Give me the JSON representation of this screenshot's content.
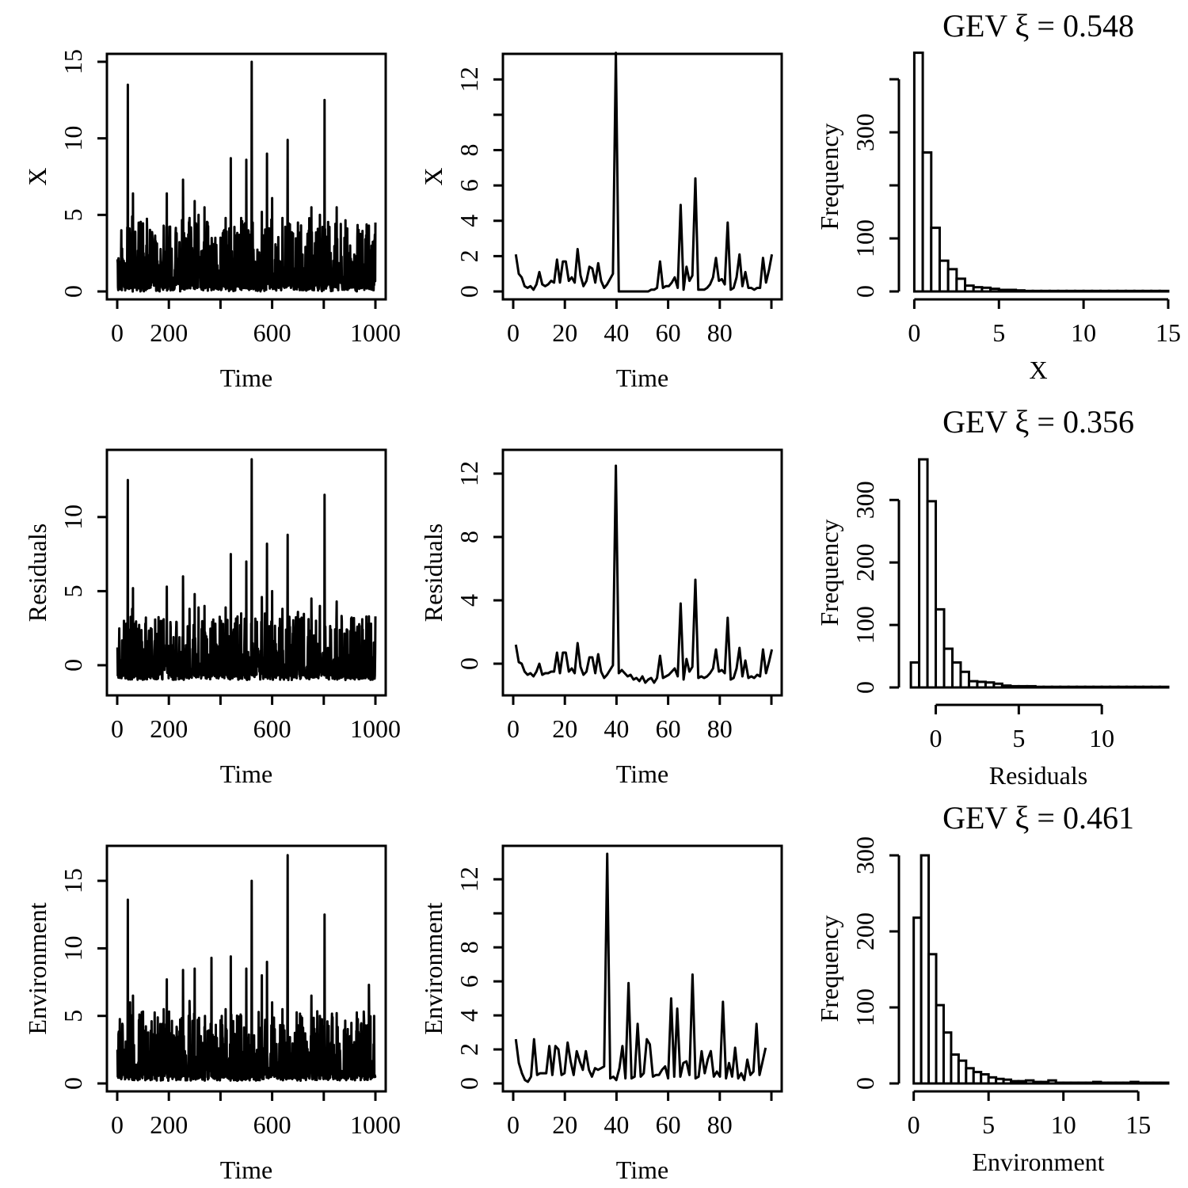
{
  "chart_data": [
    {
      "id": "p11",
      "type": "line",
      "xlabel": "Time",
      "ylabel": "X",
      "title": "",
      "xlim": [
        0,
        1000
      ],
      "ylim": [
        0,
        15
      ],
      "xticks": [
        0,
        200,
        600,
        1000
      ],
      "xminor": [
        400,
        800
      ],
      "yticks": [
        0,
        5,
        10,
        15
      ],
      "ytick_labels": [
        "0",
        "5",
        "10",
        "15"
      ],
      "base": 0,
      "spread": 3.4,
      "n": 1000,
      "seed": 11,
      "spikes": [
        [
          1,
          2.1
        ],
        [
          25,
          2.0
        ],
        [
          35,
          1.5
        ],
        [
          41,
          13.5
        ],
        [
          58,
          4.9
        ],
        [
          61,
          6.4
        ],
        [
          70,
          3.9
        ],
        [
          95,
          2.7
        ],
        [
          130,
          2.9
        ],
        [
          180,
          4.3
        ],
        [
          192,
          6.4
        ],
        [
          230,
          3.8
        ],
        [
          255,
          7.3
        ],
        [
          280,
          4.8
        ],
        [
          300,
          5.9
        ],
        [
          315,
          5.0
        ],
        [
          338,
          5.5
        ],
        [
          350,
          4.5
        ],
        [
          380,
          3.5
        ],
        [
          420,
          4.8
        ],
        [
          440,
          8.7
        ],
        [
          480,
          4.8
        ],
        [
          500,
          8.6
        ],
        [
          521,
          15.0
        ],
        [
          560,
          5.2
        ],
        [
          580,
          9.0
        ],
        [
          600,
          6.1
        ],
        [
          640,
          4.8
        ],
        [
          660,
          9.9
        ],
        [
          680,
          3.2
        ],
        [
          700,
          4.5
        ],
        [
          752,
          5.5
        ],
        [
          785,
          5.0
        ],
        [
          803,
          12.5
        ],
        [
          850,
          5.5
        ],
        [
          880,
          3.5
        ],
        [
          902,
          3.0
        ],
        [
          930,
          3.5
        ],
        [
          975,
          4.3
        ],
        [
          1000,
          4.5
        ]
      ]
    },
    {
      "id": "p12",
      "type": "line",
      "xlabel": "Time",
      "ylabel": "X",
      "title": "",
      "xlim": [
        0,
        100
      ],
      "ylim": [
        0,
        13
      ],
      "xticks": [
        0,
        20,
        40,
        60,
        80
      ],
      "xminor": [
        100
      ],
      "yticks": [
        0,
        2,
        4,
        6,
        8,
        12
      ],
      "ytick_labels": [
        "0",
        "2",
        "4",
        "6",
        "8",
        "12"
      ],
      "yminor": [
        10
      ],
      "values": [
        2.1,
        1.0,
        0.8,
        0.3,
        0.2,
        0.3,
        0.1,
        0.4,
        1.1,
        0.4,
        0.3,
        0.4,
        0.6,
        0.5,
        1.8,
        0.5,
        1.7,
        1.7,
        0.6,
        0.8,
        0.5,
        2.4,
        0.9,
        0.3,
        0.6,
        1.4,
        1.3,
        0.5,
        1.6,
        0.6,
        0.2,
        0.4,
        0.7,
        1.0,
        13.5,
        0.0,
        0.0,
        0.0,
        0.0,
        0.0,
        0.0,
        0.0,
        0.0,
        0.0,
        0.0,
        0.0,
        0.1,
        0.1,
        0.2,
        1.7,
        0.2,
        0.3,
        0.3,
        0.5,
        0.8,
        0.2,
        4.9,
        0.1,
        1.4,
        0.6,
        0.9,
        6.4,
        0.1,
        0.1,
        0.1,
        0.2,
        0.4,
        0.8,
        1.9,
        0.6,
        0.7,
        0.4,
        3.9,
        0.1,
        0.2,
        0.8,
        2.1,
        0.3,
        1.1,
        0.2,
        0.2,
        0.1,
        0.2,
        0.2,
        1.9,
        0.5,
        1.2,
        2.1
      ],
      "x_step": 1.14
    },
    {
      "id": "p13",
      "type": "bar",
      "hist": true,
      "title": "GEV ξ = 0.548",
      "xlabel": "X",
      "ylabel": "Frequency",
      "xlim": [
        -0.3,
        15
      ],
      "ylim": [
        0,
        430
      ],
      "xticks": [
        0,
        5,
        10,
        15
      ],
      "yticks": [
        0,
        100,
        300
      ],
      "yminor": [
        200,
        400
      ],
      "bin_start": 0,
      "bin_width": 0.5,
      "values": [
        450,
        262,
        120,
        58,
        42,
        24,
        11,
        8,
        7,
        5,
        3,
        3,
        2,
        1,
        1,
        1,
        1,
        1,
        1,
        1,
        1,
        1,
        1,
        1,
        1,
        1,
        1,
        1,
        1,
        1
      ]
    },
    {
      "id": "p21",
      "type": "line",
      "xlabel": "Time",
      "ylabel": "Residuals",
      "title": "",
      "xlim": [
        0,
        1000
      ],
      "ylim": [
        -1.5,
        14
      ],
      "xticks": [
        0,
        200,
        600,
        1000
      ],
      "xminor": [
        400,
        800
      ],
      "yticks": [
        0,
        5,
        10
      ],
      "ytick_labels": [
        "0",
        "5",
        "10"
      ],
      "base": -1.0,
      "spread": 3.2,
      "n": 1000,
      "seed": 21,
      "spikes": [
        [
          1,
          1.2
        ],
        [
          25,
          1.0
        ],
        [
          41,
          12.5
        ],
        [
          58,
          3.8
        ],
        [
          61,
          5.2
        ],
        [
          70,
          2.8
        ],
        [
          130,
          2.5
        ],
        [
          180,
          3.1
        ],
        [
          192,
          5.3
        ],
        [
          230,
          2.9
        ],
        [
          255,
          6.0
        ],
        [
          280,
          3.8
        ],
        [
          300,
          4.8
        ],
        [
          315,
          3.9
        ],
        [
          338,
          4.0
        ],
        [
          380,
          2.8
        ],
        [
          420,
          3.9
        ],
        [
          440,
          7.5
        ],
        [
          480,
          3.5
        ],
        [
          500,
          7.0
        ],
        [
          521,
          13.9
        ],
        [
          560,
          4.6
        ],
        [
          580,
          8.2
        ],
        [
          600,
          5.0
        ],
        [
          640,
          3.8
        ],
        [
          660,
          8.8
        ],
        [
          700,
          3.6
        ],
        [
          752,
          4.5
        ],
        [
          785,
          4.0
        ],
        [
          803,
          11.5
        ],
        [
          850,
          4.3
        ],
        [
          902,
          2.3
        ],
        [
          930,
          2.6
        ],
        [
          975,
          3.3
        ],
        [
          1000,
          3.3
        ]
      ]
    },
    {
      "id": "p22",
      "type": "line",
      "xlabel": "Time",
      "ylabel": "Residuals",
      "title": "",
      "xlim": [
        0,
        100
      ],
      "ylim": [
        -1.5,
        13
      ],
      "xticks": [
        0,
        20,
        40,
        60,
        80
      ],
      "xminor": [
        100
      ],
      "yticks": [
        0,
        4,
        8,
        12
      ],
      "ytick_labels": [
        "0",
        "4",
        "8",
        "12"
      ],
      "values": [
        1.2,
        0.1,
        0.0,
        -0.5,
        -0.7,
        -0.6,
        -0.8,
        -0.5,
        0.0,
        -0.7,
        -0.6,
        -0.6,
        -0.5,
        -0.5,
        0.7,
        -0.6,
        0.7,
        0.7,
        -0.5,
        -0.3,
        -0.6,
        1.3,
        -0.2,
        -0.7,
        -0.5,
        0.4,
        0.4,
        -0.6,
        0.6,
        -0.5,
        -0.9,
        -0.7,
        -0.4,
        -0.1,
        12.5,
        -0.6,
        -0.4,
        -0.6,
        -0.8,
        -0.7,
        -1.0,
        -0.9,
        -1.1,
        -0.8,
        -1.2,
        -1.0,
        -0.9,
        -1.2,
        -0.9,
        0.5,
        -0.9,
        -0.8,
        -0.7,
        -0.5,
        -0.3,
        -0.8,
        3.8,
        -1.0,
        0.3,
        -0.5,
        -0.2,
        5.3,
        -0.9,
        -0.8,
        -0.9,
        -0.8,
        -0.6,
        -0.3,
        0.9,
        -0.5,
        -0.4,
        -0.6,
        2.9,
        -1.0,
        -0.9,
        -0.3,
        1.0,
        -0.8,
        0.2,
        -0.9,
        -0.8,
        -0.9,
        -0.7,
        -0.8,
        0.9,
        -0.6,
        0.1,
        0.9
      ],
      "x_step": 1.14
    },
    {
      "id": "p23",
      "type": "bar",
      "hist": true,
      "title": "GEV ξ = 0.356",
      "xlabel": "Residuals",
      "ylabel": "Frequency",
      "xlim": [
        -1.6,
        14
      ],
      "ylim": [
        0,
        365
      ],
      "xticks": [
        0,
        5,
        10
      ],
      "yticks": [
        0,
        100,
        200,
        300
      ],
      "x_axis_range": [
        0,
        10
      ],
      "bin_start": -1.5,
      "bin_width": 0.5,
      "values": [
        40,
        365,
        298,
        125,
        62,
        40,
        25,
        10,
        9,
        8,
        6,
        3,
        2,
        2,
        2,
        1,
        1,
        1,
        1,
        1,
        1,
        1,
        1,
        1,
        1,
        1,
        1,
        1,
        1,
        1,
        1
      ]
    },
    {
      "id": "p31",
      "type": "line",
      "xlabel": "Time",
      "ylabel": "Environment",
      "title": "",
      "xlim": [
        0,
        1000
      ],
      "ylim": [
        0,
        17
      ],
      "xticks": [
        0,
        200,
        600,
        1000
      ],
      "xminor": [
        400,
        800
      ],
      "yticks": [
        0,
        5,
        10,
        15
      ],
      "ytick_labels": [
        "0",
        "5",
        "10",
        "15"
      ],
      "base": 0.2,
      "spread": 3.8,
      "n": 1000,
      "seed": 31,
      "spikes": [
        [
          1,
          2.5
        ],
        [
          25,
          2.5
        ],
        [
          41,
          13.6
        ],
        [
          50,
          6.0
        ],
        [
          61,
          6.5
        ],
        [
          90,
          3.8
        ],
        [
          130,
          3.9
        ],
        [
          180,
          5.5
        ],
        [
          192,
          7.7
        ],
        [
          230,
          4.2
        ],
        [
          255,
          8.4
        ],
        [
          280,
          6.1
        ],
        [
          300,
          8.5
        ],
        [
          340,
          5.0
        ],
        [
          365,
          9.3
        ],
        [
          420,
          5.5
        ],
        [
          440,
          9.4
        ],
        [
          480,
          5.0
        ],
        [
          500,
          8.5
        ],
        [
          521,
          15.0
        ],
        [
          560,
          8.0
        ],
        [
          580,
          9.0
        ],
        [
          600,
          6.0
        ],
        [
          640,
          5.5
        ],
        [
          660,
          16.9
        ],
        [
          700,
          4.3
        ],
        [
          752,
          6.5
        ],
        [
          785,
          5.0
        ],
        [
          803,
          12.5
        ],
        [
          850,
          5.2
        ],
        [
          880,
          4.0
        ],
        [
          902,
          3.5
        ],
        [
          930,
          4.5
        ],
        [
          975,
          7.3
        ],
        [
          995,
          5.0
        ]
      ]
    },
    {
      "id": "p32",
      "type": "line",
      "xlabel": "Time",
      "ylabel": "Environment",
      "title": "",
      "xlim": [
        0,
        100
      ],
      "ylim": [
        0,
        13.5
      ],
      "xticks": [
        0,
        20,
        40,
        60,
        80
      ],
      "xminor": [
        100
      ],
      "yticks": [
        0,
        2,
        4,
        6,
        8,
        12
      ],
      "ytick_labels": [
        "0",
        "2",
        "4",
        "6",
        "8",
        "12"
      ],
      "yminor": [
        10
      ],
      "values": [
        2.6,
        1.2,
        0.6,
        0.2,
        0.1,
        0.4,
        2.6,
        0.5,
        0.6,
        0.6,
        0.6,
        2.2,
        0.5,
        2.2,
        2.0,
        0.5,
        0.6,
        2.4,
        1.3,
        0.5,
        1.9,
        1.3,
        0.8,
        1.9,
        0.8,
        0.4,
        0.9,
        0.8,
        0.9,
        1.0,
        13.5,
        0.3,
        0.4,
        0.2,
        0.9,
        2.2,
        0.3,
        5.9,
        0.3,
        0.4,
        3.5,
        0.4,
        0.6,
        2.6,
        2.3,
        0.4,
        0.5,
        0.5,
        0.8,
        1.0,
        0.3,
        5.0,
        0.4,
        4.4,
        0.4,
        1.2,
        1.3,
        0.5,
        6.4,
        0.3,
        0.4,
        1.9,
        0.6,
        1.4,
        1.9,
        0.4,
        0.7,
        0.4,
        4.8,
        0.3,
        1.2,
        0.4,
        2.1,
        0.3,
        0.6,
        0.2,
        1.4,
        0.5,
        0.7,
        3.5,
        0.5,
        1.3,
        2.1
      ],
      "x_step": 1.18
    },
    {
      "id": "p33",
      "type": "bar",
      "hist": true,
      "title": "GEV ξ = 0.461",
      "xlabel": "Environment",
      "ylabel": "Frequency",
      "xlim": [
        -0.3,
        17
      ],
      "ylim": [
        0,
        300
      ],
      "xticks": [
        0,
        5,
        10,
        15
      ],
      "yticks": [
        0,
        100,
        200,
        300
      ],
      "bin_start": 0,
      "bin_width": 0.5,
      "values": [
        218,
        300,
        170,
        103,
        67,
        38,
        30,
        20,
        15,
        12,
        8,
        6,
        5,
        3,
        3,
        4,
        2,
        2,
        4,
        1,
        1,
        1,
        1,
        1,
        2,
        1,
        1,
        1,
        1,
        2,
        1,
        1,
        1,
        1
      ]
    }
  ]
}
